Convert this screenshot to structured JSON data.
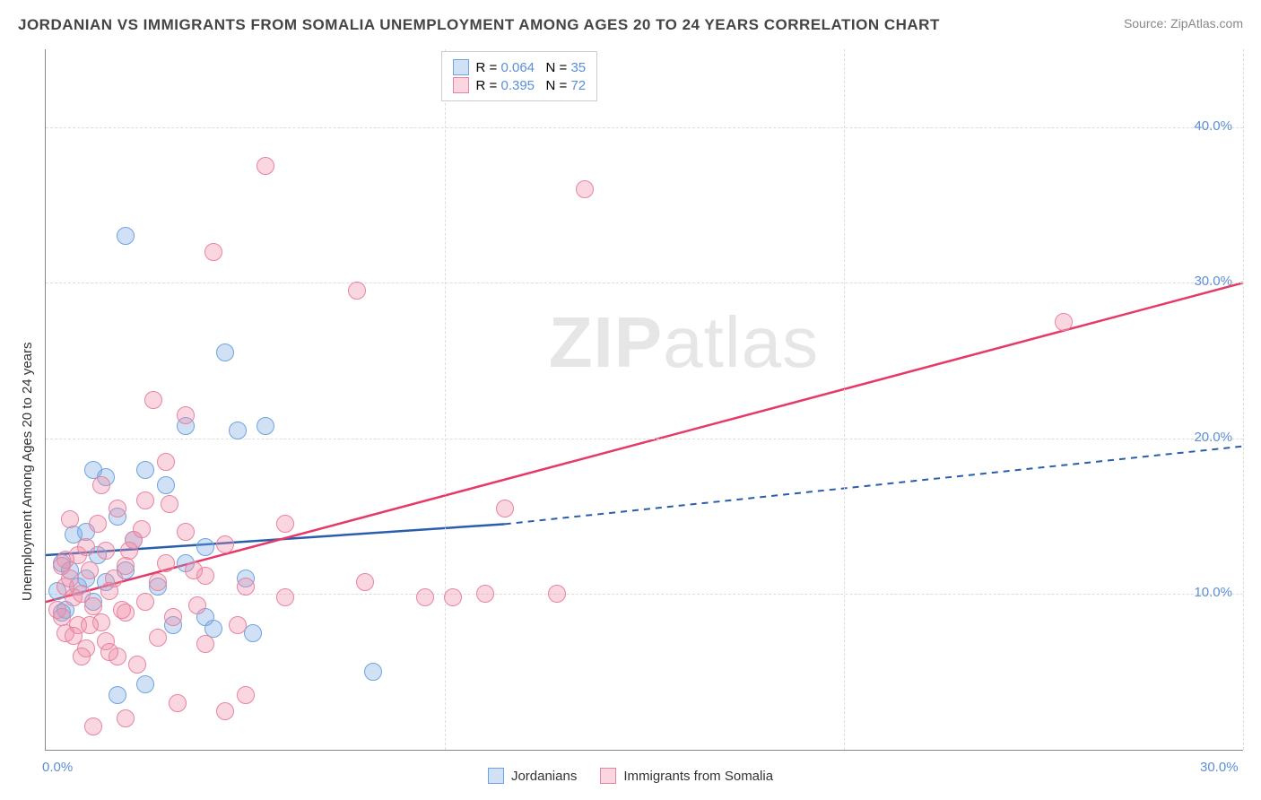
{
  "title": "JORDANIAN VS IMMIGRANTS FROM SOMALIA UNEMPLOYMENT AMONG AGES 20 TO 24 YEARS CORRELATION CHART",
  "source": "Source: ZipAtlas.com",
  "y_axis_label": "Unemployment Among Ages 20 to 24 years",
  "watermark_bold": "ZIP",
  "watermark_light": "atlas",
  "chart": {
    "type": "scatter",
    "xlim": [
      0,
      30
    ],
    "ylim": [
      0,
      45
    ],
    "x_ticks": [
      0,
      10,
      20,
      30
    ],
    "x_tick_labels": [
      "0.0%",
      "",
      "",
      "30.0%"
    ],
    "y_ticks": [
      10,
      20,
      30,
      40
    ],
    "y_tick_labels": [
      "10.0%",
      "20.0%",
      "30.0%",
      "40.0%"
    ],
    "grid_color": "#dddddd",
    "background_color": "#ffffff",
    "axis_color": "#888888",
    "tick_label_color": "#5b8fd6",
    "series": [
      {
        "name": "Jordanians",
        "color_fill": "rgba(120,170,230,0.35)",
        "color_stroke": "#6fa3e0",
        "marker_radius": 10,
        "R": 0.064,
        "N": 35,
        "trend_solid": {
          "x1": 0,
          "y1": 12.5,
          "x2": 11.5,
          "y2": 14.5
        },
        "trend_dash": {
          "x1": 11.5,
          "y1": 14.5,
          "x2": 30,
          "y2": 19.5
        },
        "trend_color": "#2a5eac",
        "points": [
          [
            0.3,
            10.2
          ],
          [
            0.4,
            12.0
          ],
          [
            0.5,
            9.0
          ],
          [
            0.6,
            11.5
          ],
          [
            0.7,
            13.8
          ],
          [
            0.8,
            10.5
          ],
          [
            1.0,
            14.0
          ],
          [
            1.0,
            11.0
          ],
          [
            1.2,
            18.0
          ],
          [
            1.2,
            9.5
          ],
          [
            1.3,
            12.5
          ],
          [
            1.5,
            17.5
          ],
          [
            1.5,
            10.8
          ],
          [
            1.8,
            15.0
          ],
          [
            2.0,
            33.0
          ],
          [
            2.0,
            11.5
          ],
          [
            2.2,
            13.5
          ],
          [
            2.5,
            18.0
          ],
          [
            2.5,
            4.2
          ],
          [
            2.8,
            10.5
          ],
          [
            3.0,
            17.0
          ],
          [
            3.2,
            8.0
          ],
          [
            3.5,
            12.0
          ],
          [
            3.5,
            20.8
          ],
          [
            4.0,
            8.5
          ],
          [
            4.0,
            13.0
          ],
          [
            4.5,
            25.5
          ],
          [
            4.8,
            20.5
          ],
          [
            5.0,
            11.0
          ],
          [
            5.2,
            7.5
          ],
          [
            5.5,
            20.8
          ],
          [
            8.2,
            5.0
          ],
          [
            1.8,
            3.5
          ],
          [
            4.2,
            7.8
          ],
          [
            0.4,
            8.8
          ]
        ]
      },
      {
        "name": "Immigrants from Somalia",
        "color_fill": "rgba(240,140,165,0.35)",
        "color_stroke": "#e8849f",
        "marker_radius": 10,
        "R": 0.395,
        "N": 72,
        "trend_solid": {
          "x1": 0,
          "y1": 9.5,
          "x2": 30,
          "y2": 30.0
        },
        "trend_dash": null,
        "trend_color": "#e63968",
        "points": [
          [
            0.3,
            9.0
          ],
          [
            0.4,
            8.5
          ],
          [
            0.5,
            10.5
          ],
          [
            0.5,
            7.5
          ],
          [
            0.6,
            11.0
          ],
          [
            0.7,
            9.8
          ],
          [
            0.8,
            12.5
          ],
          [
            0.8,
            8.0
          ],
          [
            0.9,
            10.0
          ],
          [
            1.0,
            13.0
          ],
          [
            1.0,
            6.5
          ],
          [
            1.1,
            11.5
          ],
          [
            1.2,
            9.2
          ],
          [
            1.3,
            14.5
          ],
          [
            1.4,
            8.2
          ],
          [
            1.5,
            12.8
          ],
          [
            1.5,
            7.0
          ],
          [
            1.6,
            10.2
          ],
          [
            1.8,
            15.5
          ],
          [
            1.8,
            6.0
          ],
          [
            2.0,
            11.8
          ],
          [
            2.0,
            8.8
          ],
          [
            2.2,
            13.5
          ],
          [
            2.3,
            5.5
          ],
          [
            2.5,
            16.0
          ],
          [
            2.5,
            9.5
          ],
          [
            2.7,
            22.5
          ],
          [
            2.8,
            7.2
          ],
          [
            3.0,
            12.0
          ],
          [
            3.0,
            18.5
          ],
          [
            3.2,
            8.5
          ],
          [
            3.3,
            3.0
          ],
          [
            3.5,
            14.0
          ],
          [
            3.5,
            21.5
          ],
          [
            3.8,
            9.3
          ],
          [
            4.0,
            11.2
          ],
          [
            4.0,
            6.8
          ],
          [
            4.2,
            32.0
          ],
          [
            4.5,
            13.2
          ],
          [
            4.5,
            2.5
          ],
          [
            4.8,
            8.0
          ],
          [
            5.0,
            10.5
          ],
          [
            5.0,
            3.5
          ],
          [
            5.5,
            37.5
          ],
          [
            6.0,
            9.8
          ],
          [
            6.0,
            14.5
          ],
          [
            7.8,
            29.5
          ],
          [
            8.0,
            10.8
          ],
          [
            9.5,
            9.8
          ],
          [
            10.2,
            9.8
          ],
          [
            11.0,
            10.0
          ],
          [
            11.5,
            15.5
          ],
          [
            12.8,
            10.0
          ],
          [
            13.5,
            36.0
          ],
          [
            25.5,
            27.5
          ],
          [
            1.2,
            1.5
          ],
          [
            2.0,
            2.0
          ],
          [
            0.6,
            14.8
          ],
          [
            1.4,
            17.0
          ],
          [
            0.9,
            6.0
          ],
          [
            0.5,
            12.2
          ],
          [
            1.1,
            8.0
          ],
          [
            2.8,
            10.8
          ],
          [
            3.7,
            11.5
          ],
          [
            1.9,
            9.0
          ],
          [
            0.7,
            7.3
          ],
          [
            2.4,
            14.2
          ],
          [
            1.6,
            6.3
          ],
          [
            3.1,
            15.8
          ],
          [
            0.4,
            11.8
          ],
          [
            1.7,
            11.0
          ],
          [
            2.1,
            12.8
          ]
        ]
      }
    ],
    "stats_legend": {
      "prefix_R": "R =",
      "prefix_N": "N =",
      "border_color": "#cccccc",
      "value_color": "#5b8fd6"
    }
  },
  "bottom_legend": {
    "items": [
      "Jordanians",
      "Immigrants from Somalia"
    ]
  }
}
